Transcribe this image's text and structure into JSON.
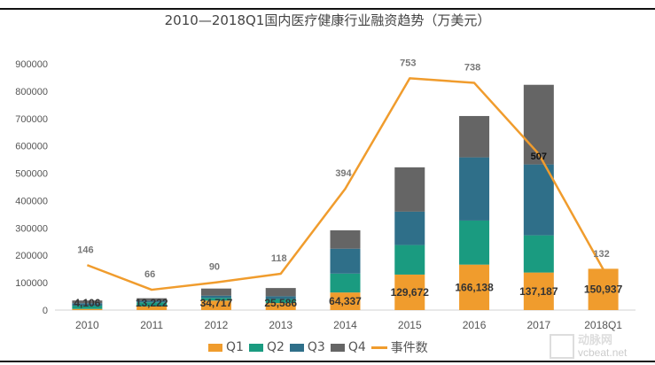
{
  "chart_data": {
    "type": "bar",
    "stacked": true,
    "title": "2010—2018Q1国内医疗健康行业融资趋势（万美元）",
    "categories": [
      "2010",
      "2011",
      "2012",
      "2013",
      "2014",
      "2015",
      "2016",
      "2017",
      "2018Q1"
    ],
    "ylim": [
      0,
      900000
    ],
    "yticks": [
      "0",
      "100000",
      "200000",
      "300000",
      "400000",
      "500000",
      "600000",
      "700000",
      "800000",
      "900000"
    ],
    "secondary_ylim": [
      0,
      800
    ],
    "grid": false,
    "legend_position": "bottom",
    "series": [
      {
        "name": "Q1",
        "type": "bar",
        "color": "#F09C2D",
        "values": [
          4106,
          13222,
          34717,
          25586,
          64337,
          129672,
          166138,
          137187,
          150937
        ],
        "labels": [
          "4,106",
          "13,222",
          "34,717",
          "25,586",
          "64,337",
          "129,672",
          "166,138",
          "137,187",
          "150,937"
        ]
      },
      {
        "name": "Q2",
        "type": "bar",
        "color": "#1A9B80",
        "values": [
          12000,
          15000,
          10000,
          15000,
          69000,
          108000,
          161000,
          136000,
          0
        ]
      },
      {
        "name": "Q3",
        "type": "bar",
        "color": "#2F6F89",
        "values": [
          9000,
          6000,
          8000,
          10000,
          91000,
          122000,
          231000,
          259000,
          0
        ]
      },
      {
        "name": "Q4",
        "type": "bar",
        "color": "#656565",
        "values": [
          10000,
          9000,
          26000,
          30000,
          67000,
          162000,
          151000,
          291000,
          0
        ]
      },
      {
        "name": "事件数",
        "type": "line",
        "axis": "secondary",
        "color": "#F09C2D",
        "values": [
          146,
          66,
          90,
          118,
          394,
          753,
          738,
          507,
          132
        ],
        "labels": [
          "146",
          "66",
          "90",
          "118",
          "394",
          "753",
          "738",
          "507",
          "132"
        ]
      }
    ]
  },
  "watermark": {
    "cn": "动脉网",
    "en": "vcbeat.net"
  }
}
